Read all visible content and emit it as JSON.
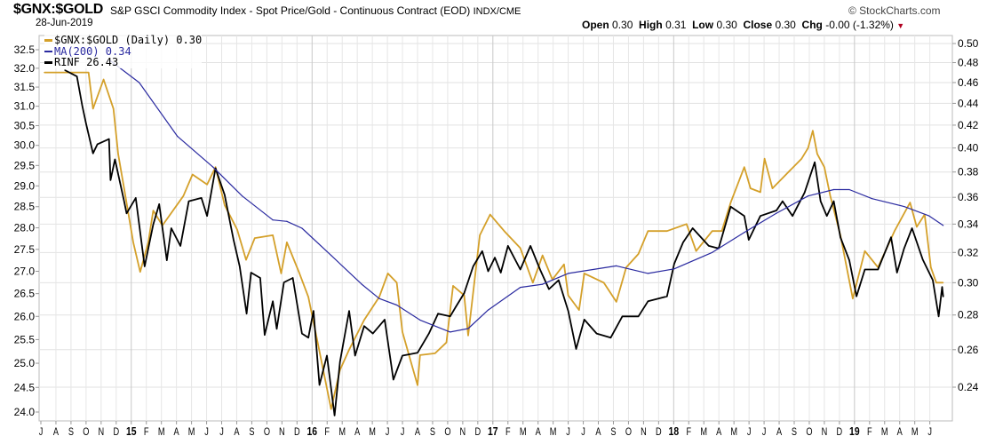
{
  "header": {
    "title": "$GNX:$GOLD",
    "subtitle": "S&P GSCI Commodity Index - Spot Price/Gold - Continuous Contract (EOD)",
    "exchange": "INDX/CME",
    "date": "28-Jun-2019",
    "copyright": "© StockCharts.com",
    "ohlc": {
      "open_label": "Open",
      "open": "0.30",
      "high_label": "High",
      "high": "0.31",
      "low_label": "Low",
      "low": "0.30",
      "close_label": "Close",
      "close": "0.30",
      "chg_label": "Chg",
      "chg": "-0.00 (-1.32%)",
      "chg_direction": "down"
    }
  },
  "legend": [
    {
      "label": "$GNX:$GOLD (Daily) 0.30",
      "color": "#d4a02a"
    },
    {
      "label": "MA(200) 0.34",
      "color": "#2a2aa0"
    },
    {
      "label": "RINF 26.43",
      "color": "#000000"
    }
  ],
  "chart_data": {
    "type": "line",
    "title": "$GNX:$GOLD",
    "x_range": [
      "2014-07-01",
      "2019-06-28"
    ],
    "x_tick_labels": [
      "J",
      "A",
      "S",
      "O",
      "N",
      "D",
      "15",
      "F",
      "M",
      "A",
      "M",
      "J",
      "J",
      "A",
      "S",
      "O",
      "N",
      "D",
      "16",
      "F",
      "M",
      "A",
      "M",
      "J",
      "J",
      "A",
      "S",
      "O",
      "N",
      "D",
      "17",
      "F",
      "M",
      "A",
      "M",
      "J",
      "J",
      "A",
      "S",
      "O",
      "N",
      "D",
      "18",
      "F",
      "M",
      "A",
      "M",
      "J",
      "J",
      "A",
      "S",
      "O",
      "N",
      "D",
      "19",
      "F",
      "M",
      "A",
      "M",
      "J"
    ],
    "left_axis": {
      "scale": "log",
      "range": [
        24.0,
        32.5
      ],
      "ticks": [
        "32.5",
        "32.0",
        "31.5",
        "31.0",
        "30.5",
        "30.0",
        "29.5",
        "29.0",
        "28.5",
        "28.0",
        "27.5",
        "27.0",
        "26.5",
        "26.0",
        "25.5",
        "25.0",
        "24.5",
        "24.0"
      ]
    },
    "right_axis": {
      "scale": "log",
      "range": [
        0.24,
        0.5
      ],
      "ticks": [
        "0.50",
        "0.48",
        "0.46",
        "0.44",
        "0.42",
        "0.40",
        "0.38",
        "0.36",
        "0.34",
        "0.32",
        "0.30",
        "0.28",
        "0.26",
        "0.24"
      ]
    },
    "grid": true,
    "legend_position": "top-left",
    "series": [
      {
        "name": "$GNX:$GOLD (Daily)",
        "axis": "right",
        "color": "#d4a02a",
        "points": [
          [
            "2014-07-08",
            0.47
          ],
          [
            "2014-10-06",
            0.47
          ],
          [
            "2014-10-15",
            0.435
          ],
          [
            "2014-11-06",
            0.463
          ],
          [
            "2014-11-26",
            0.435
          ],
          [
            "2014-12-05",
            0.395
          ],
          [
            "2014-12-17",
            0.367
          ],
          [
            "2015-01-05",
            0.327
          ],
          [
            "2015-01-19",
            0.307
          ],
          [
            "2015-02-05",
            0.327
          ],
          [
            "2015-02-15",
            0.35
          ],
          [
            "2015-03-03",
            0.339
          ],
          [
            "2015-04-15",
            0.361
          ],
          [
            "2015-05-03",
            0.378
          ],
          [
            "2015-06-02",
            0.37
          ],
          [
            "2015-06-19",
            0.384
          ],
          [
            "2015-07-07",
            0.354
          ],
          [
            "2015-08-02",
            0.336
          ],
          [
            "2015-08-20",
            0.315
          ],
          [
            "2015-09-07",
            0.33
          ],
          [
            "2015-10-13",
            0.332
          ],
          [
            "2015-10-30",
            0.306
          ],
          [
            "2015-11-11",
            0.327
          ],
          [
            "2015-12-06",
            0.306
          ],
          [
            "2015-12-24",
            0.291
          ],
          [
            "2016-01-11",
            0.266
          ],
          [
            "2016-02-09",
            0.229
          ],
          [
            "2016-02-27",
            0.249
          ],
          [
            "2016-03-15",
            0.26
          ],
          [
            "2016-04-15",
            0.277
          ],
          [
            "2016-05-15",
            0.291
          ],
          [
            "2016-06-02",
            0.306
          ],
          [
            "2016-06-20",
            0.3
          ],
          [
            "2016-07-01",
            0.27
          ],
          [
            "2016-08-01",
            0.241
          ],
          [
            "2016-08-06",
            0.257
          ],
          [
            "2016-09-06",
            0.258
          ],
          [
            "2016-09-29",
            0.264
          ],
          [
            "2016-10-12",
            0.298
          ],
          [
            "2016-11-04",
            0.292
          ],
          [
            "2016-11-12",
            0.268
          ],
          [
            "2016-12-05",
            0.332
          ],
          [
            "2016-12-26",
            0.347
          ],
          [
            "2017-01-24",
            0.335
          ],
          [
            "2017-02-26",
            0.323
          ],
          [
            "2017-03-21",
            0.3
          ],
          [
            "2017-04-10",
            0.318
          ],
          [
            "2017-04-30",
            0.302
          ],
          [
            "2017-05-23",
            0.312
          ],
          [
            "2017-06-01",
            0.292
          ],
          [
            "2017-06-23",
            0.283
          ],
          [
            "2017-07-03",
            0.306
          ],
          [
            "2017-08-12",
            0.3
          ],
          [
            "2017-09-07",
            0.288
          ],
          [
            "2017-09-27",
            0.31
          ],
          [
            "2017-10-21",
            0.319
          ],
          [
            "2017-11-10",
            0.335
          ],
          [
            "2017-12-18",
            0.335
          ],
          [
            "2018-01-27",
            0.34
          ],
          [
            "2018-02-16",
            0.321
          ],
          [
            "2018-03-18",
            0.335
          ],
          [
            "2018-04-07",
            0.335
          ],
          [
            "2018-04-25",
            0.356
          ],
          [
            "2018-05-22",
            0.384
          ],
          [
            "2018-06-04",
            0.367
          ],
          [
            "2018-06-24",
            0.364
          ],
          [
            "2018-07-02",
            0.391
          ],
          [
            "2018-07-18",
            0.367
          ],
          [
            "2018-08-15",
            0.378
          ],
          [
            "2018-09-16",
            0.391
          ],
          [
            "2018-09-29",
            0.4
          ],
          [
            "2018-10-08",
            0.415
          ],
          [
            "2018-10-17",
            0.395
          ],
          [
            "2018-11-01",
            0.384
          ],
          [
            "2018-11-13",
            0.361
          ],
          [
            "2018-12-03",
            0.332
          ],
          [
            "2018-12-28",
            0.29
          ],
          [
            "2019-01-22",
            0.321
          ],
          [
            "2019-02-18",
            0.31
          ],
          [
            "2019-03-21",
            0.335
          ],
          [
            "2019-04-22",
            0.356
          ],
          [
            "2019-05-05",
            0.338
          ],
          [
            "2019-05-21",
            0.347
          ],
          [
            "2019-06-03",
            0.31
          ],
          [
            "2019-06-14",
            0.3
          ],
          [
            "2019-06-28",
            0.3
          ]
        ]
      },
      {
        "name": "MA(200)",
        "axis": "right",
        "color": "#2a2aa0",
        "points": [
          [
            "2014-11-17",
            0.483
          ],
          [
            "2015-01-17",
            0.46
          ],
          [
            "2015-04-03",
            0.41
          ],
          [
            "2015-06-14",
            0.384
          ],
          [
            "2015-08-12",
            0.361
          ],
          [
            "2015-10-13",
            0.343
          ],
          [
            "2015-11-11",
            0.342
          ],
          [
            "2015-12-11",
            0.337
          ],
          [
            "2016-02-09",
            0.318
          ],
          [
            "2016-04-10",
            0.299
          ],
          [
            "2016-05-15",
            0.29
          ],
          [
            "2016-06-20",
            0.286
          ],
          [
            "2016-08-06",
            0.277
          ],
          [
            "2016-10-06",
            0.27
          ],
          [
            "2016-11-12",
            0.272
          ],
          [
            "2016-12-22",
            0.283
          ],
          [
            "2017-02-26",
            0.297
          ],
          [
            "2017-04-10",
            0.299
          ],
          [
            "2017-06-01",
            0.306
          ],
          [
            "2017-09-07",
            0.311
          ],
          [
            "2017-11-10",
            0.306
          ],
          [
            "2018-01-02",
            0.309
          ],
          [
            "2018-03-18",
            0.32
          ],
          [
            "2018-05-22",
            0.334
          ],
          [
            "2018-07-26",
            0.348
          ],
          [
            "2018-09-29",
            0.361
          ],
          [
            "2018-11-20",
            0.366
          ],
          [
            "2018-12-21",
            0.366
          ],
          [
            "2019-02-06",
            0.359
          ],
          [
            "2019-04-10",
            0.353
          ],
          [
            "2019-05-30",
            0.346
          ],
          [
            "2019-06-28",
            0.339
          ]
        ]
      },
      {
        "name": "RINF",
        "axis": "left",
        "color": "#000000",
        "points": [
          [
            "2014-08-19",
            31.95
          ],
          [
            "2014-09-13",
            31.78
          ],
          [
            "2014-09-24",
            31.0
          ],
          [
            "2014-10-01",
            30.55
          ],
          [
            "2014-10-15",
            29.8
          ],
          [
            "2014-10-24",
            30.03
          ],
          [
            "2014-11-17",
            30.16
          ],
          [
            "2014-11-20",
            29.14
          ],
          [
            "2014-11-29",
            29.65
          ],
          [
            "2014-12-17",
            28.63
          ],
          [
            "2014-12-22",
            28.34
          ],
          [
            "2015-01-10",
            28.71
          ],
          [
            "2015-01-28",
            27.11
          ],
          [
            "2015-02-15",
            28.08
          ],
          [
            "2015-02-27",
            28.56
          ],
          [
            "2015-03-12",
            27.25
          ],
          [
            "2015-03-21",
            27.99
          ],
          [
            "2015-04-09",
            27.58
          ],
          [
            "2015-04-26",
            28.63
          ],
          [
            "2015-05-21",
            28.71
          ],
          [
            "2015-06-02",
            28.28
          ],
          [
            "2015-06-19",
            29.43
          ],
          [
            "2015-07-07",
            28.78
          ],
          [
            "2015-07-25",
            27.72
          ],
          [
            "2015-08-07",
            27.11
          ],
          [
            "2015-08-21",
            26.06
          ],
          [
            "2015-08-30",
            26.97
          ],
          [
            "2015-09-18",
            26.85
          ],
          [
            "2015-09-27",
            25.6
          ],
          [
            "2015-10-13",
            26.33
          ],
          [
            "2015-10-21",
            25.73
          ],
          [
            "2015-11-05",
            26.75
          ],
          [
            "2015-11-23",
            26.85
          ],
          [
            "2015-12-11",
            25.63
          ],
          [
            "2015-12-24",
            25.54
          ],
          [
            "2016-01-04",
            26.12
          ],
          [
            "2016-01-16",
            24.55
          ],
          [
            "2016-01-31",
            25.16
          ],
          [
            "2016-02-16",
            23.93
          ],
          [
            "2016-02-27",
            25.03
          ],
          [
            "2016-03-15",
            26.12
          ],
          [
            "2016-03-27",
            25.16
          ],
          [
            "2016-04-15",
            25.79
          ],
          [
            "2016-05-02",
            25.63
          ],
          [
            "2016-05-26",
            25.93
          ],
          [
            "2016-06-13",
            24.66
          ],
          [
            "2016-07-01",
            25.16
          ],
          [
            "2016-08-01",
            25.22
          ],
          [
            "2016-08-24",
            25.63
          ],
          [
            "2016-09-12",
            26.06
          ],
          [
            "2016-10-06",
            26.0
          ],
          [
            "2016-10-17",
            26.2
          ],
          [
            "2016-11-04",
            26.51
          ],
          [
            "2016-11-22",
            27.11
          ],
          [
            "2016-12-10",
            27.46
          ],
          [
            "2016-12-22",
            27.0
          ],
          [
            "2017-01-05",
            27.31
          ],
          [
            "2017-01-17",
            26.97
          ],
          [
            "2017-02-01",
            27.58
          ],
          [
            "2017-02-26",
            27.04
          ],
          [
            "2017-03-16",
            27.58
          ],
          [
            "2017-04-05",
            27.04
          ],
          [
            "2017-04-23",
            26.6
          ],
          [
            "2017-05-12",
            26.8
          ],
          [
            "2017-06-01",
            26.12
          ],
          [
            "2017-06-17",
            25.3
          ],
          [
            "2017-07-03",
            25.93
          ],
          [
            "2017-07-28",
            25.63
          ],
          [
            "2017-08-26",
            25.54
          ],
          [
            "2017-09-19",
            26.0
          ],
          [
            "2017-10-21",
            26.0
          ],
          [
            "2017-11-10",
            26.33
          ],
          [
            "2017-12-18",
            26.44
          ],
          [
            "2018-01-02",
            27.17
          ],
          [
            "2018-01-20",
            27.66
          ],
          [
            "2018-02-09",
            27.99
          ],
          [
            "2018-03-11",
            27.58
          ],
          [
            "2018-03-31",
            27.52
          ],
          [
            "2018-04-25",
            28.5
          ],
          [
            "2018-05-22",
            28.28
          ],
          [
            "2018-05-31",
            27.72
          ],
          [
            "2018-06-24",
            28.28
          ],
          [
            "2018-07-26",
            28.41
          ],
          [
            "2018-08-08",
            28.63
          ],
          [
            "2018-08-28",
            28.28
          ],
          [
            "2018-09-22",
            28.84
          ],
          [
            "2018-10-12",
            29.58
          ],
          [
            "2018-10-24",
            28.63
          ],
          [
            "2018-11-06",
            28.28
          ],
          [
            "2018-11-20",
            28.63
          ],
          [
            "2018-12-03",
            27.78
          ],
          [
            "2018-12-21",
            27.25
          ],
          [
            "2019-01-05",
            26.44
          ],
          [
            "2019-01-22",
            27.04
          ],
          [
            "2019-02-18",
            27.04
          ],
          [
            "2019-03-14",
            27.78
          ],
          [
            "2019-03-26",
            26.97
          ],
          [
            "2019-04-10",
            27.52
          ],
          [
            "2019-04-26",
            27.99
          ],
          [
            "2019-05-17",
            27.27
          ],
          [
            "2019-06-07",
            26.8
          ],
          [
            "2019-06-19",
            26.0
          ],
          [
            "2019-06-26",
            26.65
          ],
          [
            "2019-06-28",
            26.43
          ]
        ]
      }
    ]
  }
}
